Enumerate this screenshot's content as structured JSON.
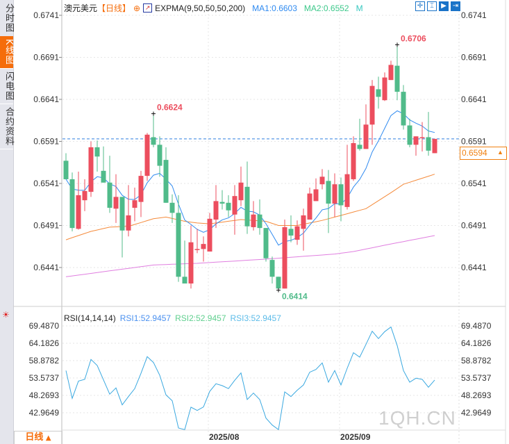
{
  "sidebar": {
    "tabs": [
      {
        "label": "分时图"
      },
      {
        "label": "K线图",
        "active": true
      },
      {
        "label": "闪电图"
      },
      {
        "label": "合约资料"
      }
    ]
  },
  "header": {
    "symbol": "澳元美元",
    "period": "【日线】",
    "indicator": "EXPMA(9,50,50,50,200)",
    "ma1": "MA1:0.6603",
    "ma2": "MA2:0.6552",
    "more": "M"
  },
  "tools": [
    {
      "icon": "crosshair-icon",
      "glyph": "✛"
    },
    {
      "icon": "range-icon",
      "glyph": "⌶"
    },
    {
      "icon": "cursor-icon",
      "glyph": "▶"
    },
    {
      "icon": "exit-icon",
      "glyph": "⇥"
    }
  ],
  "price_axis": {
    "labels": [
      "0.6741",
      "0.6691",
      "0.6641",
      "0.6591",
      "0.6541",
      "0.6491",
      "0.6441"
    ],
    "current": "0.6594"
  },
  "annotations": {
    "high1": "0.6624",
    "high2": "0.6706",
    "low": "0.6414"
  },
  "rsi": {
    "title": "RSI(14,14,14)",
    "rsi1": "RSI1:52.9457",
    "rsi2": "RSI2:52.9457",
    "rsi3": "RSI3:52.9457",
    "axis": [
      "69.4870",
      "64.1826",
      "58.8782",
      "53.5737",
      "48.2693",
      "42.9649"
    ]
  },
  "dates": [
    "2025/08",
    "2025/09"
  ],
  "period_button": "日线",
  "watermark": "1QH.CN",
  "colors": {
    "up": "#ec4e5e",
    "down": "#50bb8a",
    "ema9": "#2f8af0",
    "ema50": "#f58a3a",
    "ema200": "#e07ee0",
    "accent": "#f56d0b",
    "rsi": "#39a8e0"
  },
  "chart_data": {
    "type": "candlestick",
    "ohlc": [
      [
        0.6568,
        0.6577,
        0.6546,
        0.6546
      ],
      [
        0.6546,
        0.6554,
        0.6484,
        0.6488
      ],
      [
        0.6487,
        0.6555,
        0.6486,
        0.6527
      ],
      [
        0.6521,
        0.6546,
        0.6508,
        0.6532
      ],
      [
        0.6531,
        0.6591,
        0.6525,
        0.6584
      ],
      [
        0.6584,
        0.6592,
        0.6555,
        0.6573
      ],
      [
        0.6556,
        0.6585,
        0.6542,
        0.6542
      ],
      [
        0.6542,
        0.6574,
        0.6506,
        0.6512
      ],
      [
        0.6511,
        0.6552,
        0.6494,
        0.6525
      ],
      [
        0.6525,
        0.6525,
        0.6453,
        0.6485
      ],
      [
        0.6485,
        0.6539,
        0.6478,
        0.6503
      ],
      [
        0.6512,
        0.6536,
        0.6496,
        0.6521
      ],
      [
        0.6519,
        0.6556,
        0.6501,
        0.655
      ],
      [
        0.655,
        0.6601,
        0.6544,
        0.6599
      ],
      [
        0.6596,
        0.6624,
        0.6584,
        0.6587
      ],
      [
        0.6587,
        0.6597,
        0.6549,
        0.6562
      ],
      [
        0.6569,
        0.6584,
        0.6518,
        0.6518
      ],
      [
        0.6518,
        0.6528,
        0.6494,
        0.6506
      ],
      [
        0.6506,
        0.6527,
        0.6424,
        0.643
      ],
      [
        0.643,
        0.6473,
        0.6422,
        0.6422
      ],
      [
        0.6422,
        0.6491,
        0.6416,
        0.6471
      ],
      [
        0.6462,
        0.6487,
        0.6458,
        0.6463
      ],
      [
        0.6463,
        0.6478,
        0.6448,
        0.6469
      ],
      [
        0.646,
        0.6506,
        0.646,
        0.6499
      ],
      [
        0.6498,
        0.6539,
        0.6488,
        0.652
      ],
      [
        0.6519,
        0.6533,
        0.651,
        0.6517
      ],
      [
        0.6518,
        0.6527,
        0.6501,
        0.6509
      ],
      [
        0.6504,
        0.6539,
        0.648,
        0.6526
      ],
      [
        0.6521,
        0.6561,
        0.6514,
        0.6542
      ],
      [
        0.6537,
        0.6567,
        0.6481,
        0.649
      ],
      [
        0.6489,
        0.652,
        0.6485,
        0.6504
      ],
      [
        0.6504,
        0.6522,
        0.648,
        0.6488
      ],
      [
        0.6488,
        0.6488,
        0.6448,
        0.6452
      ],
      [
        0.645,
        0.6454,
        0.6422,
        0.643
      ],
      [
        0.643,
        0.643,
        0.6414,
        0.6416
      ],
      [
        0.6416,
        0.6498,
        0.6416,
        0.6489
      ],
      [
        0.6487,
        0.6503,
        0.6471,
        0.6479
      ],
      [
        0.6474,
        0.6497,
        0.6468,
        0.649
      ],
      [
        0.6487,
        0.6511,
        0.6461,
        0.6503
      ],
      [
        0.6498,
        0.6536,
        0.6498,
        0.6529
      ],
      [
        0.652,
        0.6547,
        0.652,
        0.6534
      ],
      [
        0.654,
        0.6558,
        0.6534,
        0.6549
      ],
      [
        0.6544,
        0.6557,
        0.6482,
        0.6517
      ],
      [
        0.6517,
        0.6553,
        0.6501,
        0.654
      ],
      [
        0.654,
        0.6548,
        0.6496,
        0.6515
      ],
      [
        0.6513,
        0.6587,
        0.651,
        0.6552
      ],
      [
        0.6546,
        0.6597,
        0.6544,
        0.6589
      ],
      [
        0.6587,
        0.6618,
        0.658,
        0.6582
      ],
      [
        0.6582,
        0.6635,
        0.6582,
        0.6611
      ],
      [
        0.6611,
        0.6664,
        0.6587,
        0.6657
      ],
      [
        0.6653,
        0.6668,
        0.663,
        0.6644
      ],
      [
        0.664,
        0.6673,
        0.6639,
        0.6667
      ],
      [
        0.6664,
        0.6687,
        0.6664,
        0.6682
      ],
      [
        0.6681,
        0.6706,
        0.664,
        0.665
      ],
      [
        0.665,
        0.6658,
        0.6605,
        0.661
      ],
      [
        0.661,
        0.6618,
        0.6584,
        0.6587
      ],
      [
        0.6587,
        0.6597,
        0.6574,
        0.6597
      ],
      [
        0.6595,
        0.6614,
        0.6579,
        0.6596
      ],
      [
        0.6596,
        0.6626,
        0.6574,
        0.658
      ],
      [
        0.6577,
        0.6594,
        0.6577,
        0.6594
      ]
    ],
    "ema50_keyframes": [
      [
        0,
        0.6474
      ],
      [
        4,
        0.6484
      ],
      [
        7,
        0.6489
      ],
      [
        10,
        0.649
      ],
      [
        14,
        0.6499
      ],
      [
        16,
        0.6501
      ],
      [
        19,
        0.6496
      ],
      [
        21,
        0.6494
      ],
      [
        23,
        0.6493
      ],
      [
        28,
        0.6498
      ],
      [
        32,
        0.6496
      ],
      [
        34,
        0.6491
      ],
      [
        37,
        0.6491
      ],
      [
        41,
        0.6497
      ],
      [
        44,
        0.6503
      ],
      [
        48,
        0.6511
      ],
      [
        52,
        0.653
      ],
      [
        54,
        0.654
      ],
      [
        59,
        0.6552
      ]
    ],
    "ema200_keyframes": [
      [
        0,
        0.643
      ],
      [
        7,
        0.6437
      ],
      [
        14,
        0.6444
      ],
      [
        21,
        0.6446
      ],
      [
        32,
        0.6451
      ],
      [
        43,
        0.6457
      ],
      [
        46,
        0.646
      ],
      [
        52,
        0.6469
      ],
      [
        59,
        0.6479
      ]
    ],
    "rsi": [
      55.84,
      47.35,
      52.65,
      53.15,
      59.23,
      57.39,
      53.01,
      48.62,
      50.53,
      45.37,
      47.91,
      50.32,
      54.99,
      60.08,
      58.31,
      54.42,
      48.41,
      46.64,
      38.3,
      37.8,
      44.66,
      43.67,
      44.73,
      49.47,
      51.81,
      51.24,
      50.32,
      52.87,
      55.13,
      47.0,
      48.98,
      47.0,
      41.34,
      39.22,
      37.8,
      49.33,
      47.91,
      49.83,
      51.45,
      55.34,
      56.19,
      58.17,
      52.3,
      55.84,
      51.45,
      56.55,
      61.29,
      59.94,
      63.83,
      67.86,
      65.6,
      67.72,
      69.14,
      63.48,
      55.84,
      52.3,
      53.51,
      53.15,
      50.75,
      52.95
    ],
    "ylim": [
      0.6416,
      0.6741
    ],
    "rsi_ylim": [
      37.8,
      69.487
    ],
    "month_starts": {
      "2025/08": 23,
      "2025/09": 44
    }
  }
}
